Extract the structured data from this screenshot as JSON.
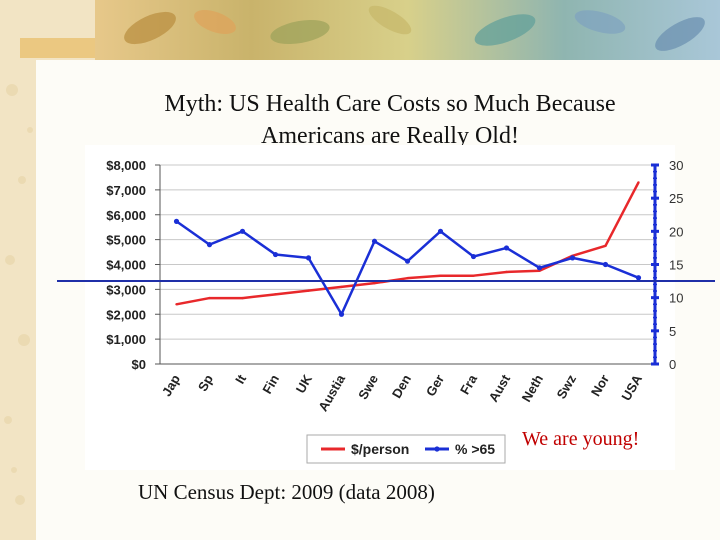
{
  "slide": {
    "title_line1": "Myth: US Health Care Costs so Much Because",
    "title_line2": "Americans are Really Old!",
    "callout": "We are young!",
    "footnote": "UN Census Dept: 2009 (data 2008)"
  },
  "colors": {
    "cost_series": "#e8282b",
    "age_series": "#1a2fd6",
    "reference_line": "#1f2fa8",
    "callout": "#c00000"
  },
  "chart_data": {
    "type": "line",
    "title": "",
    "categories": [
      "Jap",
      "Sp",
      "It",
      "Fin",
      "UK",
      "Austia",
      "Swe",
      "Den",
      "Ger",
      "Fra",
      "Aust",
      "Neth",
      "Swz",
      "Nor",
      "USA"
    ],
    "series": [
      {
        "name": "$/person",
        "axis": "left",
        "values": [
          2400,
          2650,
          2650,
          2800,
          2950,
          3100,
          3250,
          3450,
          3550,
          3550,
          3700,
          3750,
          4350,
          4750,
          7300
        ]
      },
      {
        "name": "% >65",
        "axis": "right",
        "values": [
          21.5,
          18,
          20,
          16.5,
          16,
          7.5,
          18.5,
          15.5,
          20,
          16.2,
          17.5,
          14.5,
          16,
          15,
          13
        ]
      }
    ],
    "y_left": {
      "ylim": [
        0,
        8000
      ],
      "ticks": [
        0,
        1000,
        2000,
        3000,
        4000,
        5000,
        6000,
        7000,
        8000
      ],
      "tick_labels": [
        "$0",
        "$1,000",
        "$2,000",
        "$3,000",
        "$4,000",
        "$5,000",
        "$6,000",
        "$7,000",
        "$8,000"
      ]
    },
    "y_right": {
      "ylim": [
        0,
        30
      ],
      "ticks": [
        0,
        5,
        10,
        15,
        20,
        25,
        30
      ],
      "tick_labels": [
        "0",
        "5",
        "10",
        "15",
        "20",
        "25",
        "30"
      ]
    },
    "legend": {
      "placement": "bottom-center",
      "entries": [
        "$/person",
        "% >65"
      ]
    },
    "grid": true
  }
}
